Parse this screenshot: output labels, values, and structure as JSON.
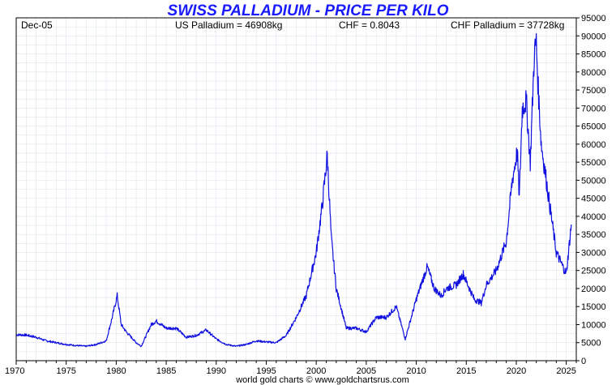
{
  "colors": {
    "title": "#1a1aff",
    "line": "#1010e0",
    "grid": "#dde4ec",
    "axis": "#000000",
    "background": "#ffffff"
  },
  "header": {
    "date": "Dec-05",
    "us_price": "US Palladium = 46908kg",
    "fx_rate": "CHF = 0.8043",
    "chf_price": "CHF Palladium = 37728kg"
  },
  "footer": "world gold charts © www.goldchartsrus.com",
  "chart_data": {
    "type": "line",
    "title": "SWISS PALLADIUM - PRICE PER KILO",
    "xlabel": "",
    "ylabel": "",
    "xlim": [
      1970,
      2026
    ],
    "ylim": [
      0,
      95000
    ],
    "grid": true,
    "legend": "none",
    "x_ticks": [
      1970,
      1975,
      1980,
      1985,
      1990,
      1995,
      2000,
      2005,
      2010,
      2015,
      2020,
      2025
    ],
    "y_ticks": [
      0,
      5000,
      10000,
      15000,
      20000,
      25000,
      30000,
      35000,
      40000,
      45000,
      50000,
      55000,
      60000,
      65000,
      70000,
      75000,
      80000,
      85000,
      90000,
      95000
    ],
    "series": [
      {
        "x": [
          1970,
          1971,
          1972,
          1973,
          1974,
          1975,
          1976,
          1977,
          1978,
          1979,
          1979.6,
          1980.1,
          1980.5,
          1981,
          1982,
          1982.5,
          1983.5,
          1984,
          1985,
          1986,
          1987,
          1988,
          1989,
          1990,
          1991,
          1992,
          1993,
          1994,
          1995,
          1996,
          1997,
          1998,
          1999,
          2000,
          2000.6,
          2001.1,
          2001.5,
          2002,
          2003,
          2004,
          2005,
          2006,
          2007,
          2008,
          2008.5,
          2008.9,
          2009.5,
          2010,
          2010.6,
          2011.1,
          2011.8,
          2012.5,
          2013,
          2014,
          2014.7,
          2015,
          2015.8,
          2016.5,
          2017,
          2018,
          2019,
          2019.6,
          2020.1,
          2020.3,
          2020.6,
          2021,
          2021.4,
          2021.8,
          2022,
          2022.2,
          2022.5,
          2023,
          2023.5,
          2024,
          2024.5,
          2025,
          2025.5
        ],
        "y": [
          7200,
          7100,
          6500,
          5500,
          5000,
          4500,
          4200,
          4000,
          4500,
          5500,
          12000,
          18000,
          10000,
          8000,
          5000,
          4000,
          10000,
          11000,
          9000,
          9000,
          6500,
          7000,
          8500,
          6000,
          4500,
          4000,
          4500,
          5500,
          5200,
          5000,
          7000,
          12000,
          18000,
          30000,
          43000,
          57000,
          34000,
          20000,
          9000,
          9000,
          8000,
          12000,
          12000,
          15000,
          10000,
          6000,
          12000,
          17000,
          22000,
          26000,
          20000,
          18000,
          20000,
          21000,
          24000,
          22000,
          17000,
          16000,
          21000,
          25000,
          33000,
          50000,
          58000,
          45000,
          70000,
          72000,
          55000,
          85000,
          88000,
          75000,
          60000,
          50000,
          40000,
          30000,
          27000,
          24000,
          37728
        ]
      }
    ]
  }
}
